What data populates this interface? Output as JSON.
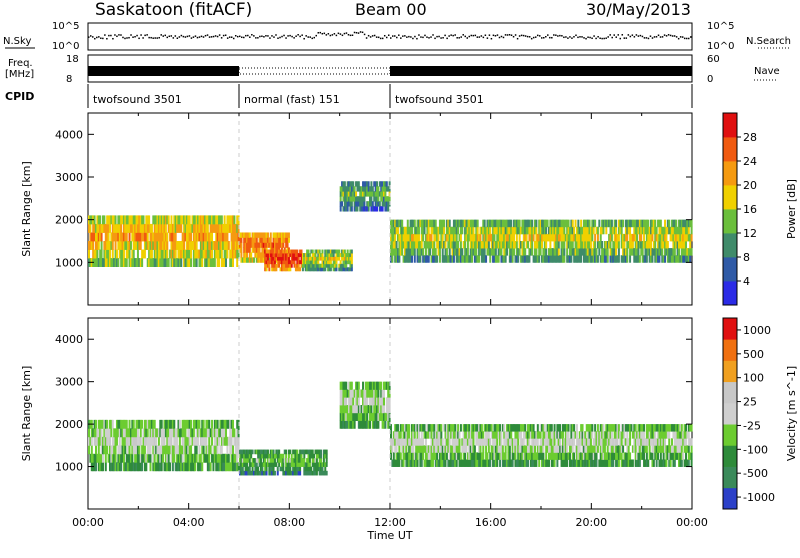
{
  "header": {
    "station": "Saskatoon (fitACF)",
    "beam": "Beam 00",
    "date": "30/May/2013"
  },
  "top_panels": {
    "nsky_label": "N.Sky",
    "nsearch_label": "N.Search",
    "freq_label_1": "Freq.",
    "freq_label_2": "[MHz]",
    "nave_label": "Nave",
    "cpid_label": "CPID",
    "noise_ticks_left": [
      "10^5",
      "10^0"
    ],
    "noise_ticks_right": [
      "10^5",
      "10^0"
    ],
    "freq_ticks": [
      "18",
      "8"
    ],
    "nave_ticks": [
      "60",
      "0"
    ],
    "cpid_segments": [
      {
        "name": "twofsound 3501",
        "start_hour": 0,
        "end_hour": 6
      },
      {
        "name": "normal (fast) 151",
        "start_hour": 6,
        "end_hour": 12
      },
      {
        "name": "twofsound 3501",
        "start_hour": 12,
        "end_hour": 24
      }
    ]
  },
  "chart_data": [
    {
      "type": "heatmap",
      "quantity": "power",
      "ylabel": "Slant Range [km]",
      "yticks": [
        "1000",
        "2000",
        "3000",
        "4000"
      ],
      "ylim": [
        0,
        4500
      ],
      "xlim": [
        0,
        24
      ],
      "colorbar_label": "Power [dB]",
      "colorbar_ticks": [
        "4",
        "8",
        "12",
        "16",
        "20",
        "24",
        "28"
      ],
      "colors": [
        "#2b2be6",
        "#2f5aa6",
        "#3f8b6a",
        "#6bbf3c",
        "#f0d000",
        "#f59a10",
        "#f05a10",
        "#e01010"
      ],
      "bands": [
        {
          "start_hour": 0,
          "end_hour": 6,
          "r_lo": 900,
          "r_hi": 2100,
          "level": 5
        },
        {
          "start_hour": 6,
          "end_hour": 8,
          "r_lo": 1000,
          "r_hi": 1700,
          "level": 6
        },
        {
          "start_hour": 7,
          "end_hour": 8.5,
          "r_lo": 800,
          "r_hi": 1300,
          "level": 7
        },
        {
          "start_hour": 8.5,
          "end_hour": 10.5,
          "r_lo": 800,
          "r_hi": 1300,
          "level": 4
        },
        {
          "start_hour": 10,
          "end_hour": 12,
          "r_lo": 2200,
          "r_hi": 2900,
          "level": 3
        },
        {
          "start_hour": 12,
          "end_hour": 24,
          "r_lo": 1000,
          "r_hi": 2000,
          "level": 4
        }
      ]
    },
    {
      "type": "heatmap",
      "quantity": "velocity",
      "ylabel": "Slant Range [km]",
      "yticks": [
        "1000",
        "2000",
        "3000",
        "4000"
      ],
      "ylim": [
        0,
        4500
      ],
      "xlim": [
        0,
        24
      ],
      "xlabel": "Time UT",
      "xticks": [
        "00:00",
        "04:00",
        "08:00",
        "12:00",
        "16:00",
        "20:00",
        "00:00"
      ],
      "colorbar_label": "Velocity [m s^-1]",
      "colorbar_ticks": [
        "1000",
        "500",
        "100",
        "25",
        "-25",
        "-100",
        "-500",
        "-1000"
      ],
      "colors": [
        "#2b40c8",
        "#3a8a5a",
        "#2e8b3a",
        "#6ccc30",
        "#cfcfcf",
        "#c8c8c8",
        "#f0a020",
        "#f07010",
        "#e01010"
      ],
      "bands": [
        {
          "start_hour": 0,
          "end_hour": 6,
          "r_lo": 900,
          "r_hi": 2100,
          "level": 4
        },
        {
          "start_hour": 6,
          "end_hour": 9.5,
          "r_lo": 800,
          "r_hi": 1400,
          "level": 3
        },
        {
          "start_hour": 10,
          "end_hour": 12,
          "r_lo": 1900,
          "r_hi": 3000,
          "level": 4
        },
        {
          "start_hour": 12,
          "end_hour": 24,
          "r_lo": 1000,
          "r_hi": 2000,
          "level": 4
        }
      ]
    }
  ]
}
